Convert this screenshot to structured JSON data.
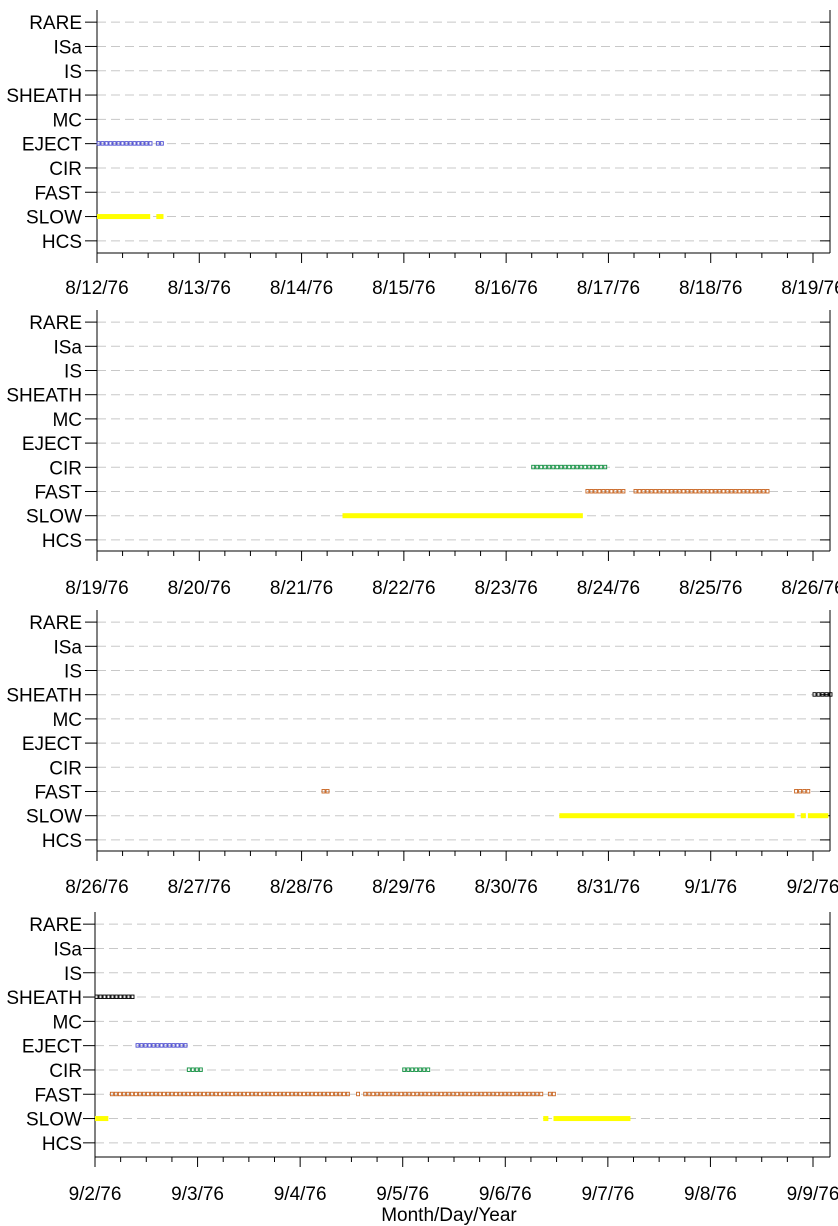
{
  "chart_data": {
    "type": "scatter",
    "xlabel": "Month/Day/Year",
    "categories": [
      "RARE",
      "ISa",
      "IS",
      "SHEATH",
      "MC",
      "EJECT",
      "CIR",
      "FAST",
      "SLOW",
      "HCS"
    ],
    "colors": {
      "EJECT": "#4a4ad0",
      "CIR": "#109040",
      "FAST": "#c86420",
      "SHEATH": "#000000",
      "SLOW": "#ffff00"
    },
    "panels": [
      {
        "x_ticks": [
          "8/12/76",
          "8/13/76",
          "8/14/76",
          "8/15/76",
          "8/16/76",
          "8/17/76",
          "8/18/76",
          "8/19/76"
        ],
        "x_range_days": [
          0,
          7
        ],
        "intervals": [
          {
            "category": "EJECT",
            "start": 0.0,
            "end": 0.52
          },
          {
            "category": "EJECT",
            "start": 0.58,
            "end": 0.65
          },
          {
            "category": "SLOW",
            "start": 0.0,
            "end": 0.52
          },
          {
            "category": "SLOW",
            "start": 0.58,
            "end": 0.65
          }
        ]
      },
      {
        "x_ticks": [
          "8/19/76",
          "8/20/76",
          "8/21/76",
          "8/22/76",
          "8/23/76",
          "8/24/76",
          "8/25/76",
          "8/26/76"
        ],
        "x_range_days": [
          0,
          7
        ],
        "intervals": [
          {
            "category": "SLOW",
            "start": 2.4,
            "end": 4.75
          },
          {
            "category": "CIR",
            "start": 4.25,
            "end": 4.98
          },
          {
            "category": "FAST",
            "start": 4.78,
            "end": 5.15
          },
          {
            "category": "FAST",
            "start": 5.25,
            "end": 6.57
          }
        ]
      },
      {
        "x_ticks": [
          "8/26/76",
          "8/27/76",
          "8/28/76",
          "8/29/76",
          "8/30/76",
          "8/31/76",
          "9/1/76",
          "9/2/76"
        ],
        "x_range_days": [
          0,
          7
        ],
        "intervals": [
          {
            "category": "FAST",
            "start": 2.2,
            "end": 2.27
          },
          {
            "category": "SLOW",
            "start": 4.52,
            "end": 6.82
          },
          {
            "category": "SLOW",
            "start": 6.88,
            "end": 6.93
          },
          {
            "category": "SLOW",
            "start": 6.95,
            "end": 7.15
          },
          {
            "category": "FAST",
            "start": 6.82,
            "end": 6.87
          },
          {
            "category": "FAST",
            "start": 6.9,
            "end": 6.95
          },
          {
            "category": "SHEATH",
            "start": 7.0,
            "end": 7.16
          }
        ]
      },
      {
        "x_ticks": [
          "9/2/76",
          "9/3/76",
          "9/4/76",
          "9/5/76",
          "9/6/76",
          "9/7/76",
          "9/8/76",
          "9/9/76"
        ],
        "x_range_days": [
          0,
          7
        ],
        "intervals": [
          {
            "category": "SHEATH",
            "start": 0.0,
            "end": 0.38
          },
          {
            "category": "EJECT",
            "start": 0.4,
            "end": 0.9
          },
          {
            "category": "CIR",
            "start": 0.9,
            "end": 1.02
          },
          {
            "category": "CIR",
            "start": 3.0,
            "end": 3.25
          },
          {
            "category": "FAST",
            "start": 0.15,
            "end": 2.48
          },
          {
            "category": "FAST",
            "start": 2.55,
            "end": 2.58
          },
          {
            "category": "FAST",
            "start": 2.62,
            "end": 4.37
          },
          {
            "category": "FAST",
            "start": 4.42,
            "end": 4.47
          },
          {
            "category": "SLOW",
            "start": 0.0,
            "end": 0.13
          },
          {
            "category": "SLOW",
            "start": 4.37,
            "end": 4.42
          },
          {
            "category": "SLOW",
            "start": 4.47,
            "end": 5.22
          }
        ]
      }
    ]
  }
}
